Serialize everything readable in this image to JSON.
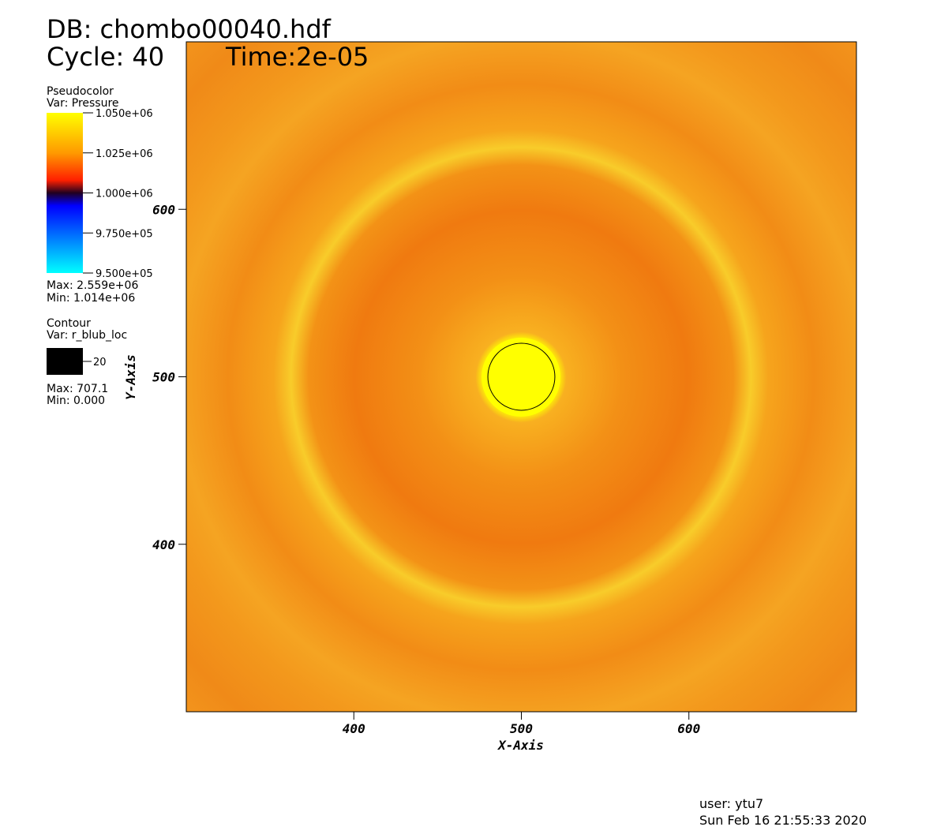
{
  "header": {
    "db": "DB: chombo00040.hdf",
    "cycle": "Cycle: 40",
    "time": "Time:2e-05"
  },
  "pseudocolor": {
    "title": "Pseudocolor",
    "var": "Var: Pressure",
    "ticks": [
      "1.050e+06",
      "1.025e+06",
      "1.000e+06",
      "9.750e+05",
      "9.500e+05"
    ],
    "max": "Max: 2.559e+06",
    "min": "Min:  1.014e+06"
  },
  "contour": {
    "title": "Contour",
    "var": "Var: r_blub_loc",
    "level": 20,
    "max": "Max: 707.1",
    "min": "Min: 0.000"
  },
  "plot": {
    "xlim": [
      300,
      700
    ],
    "ylim": [
      300,
      700
    ],
    "xticks": [
      400,
      500,
      600
    ],
    "yticks": [
      400,
      500,
      600
    ],
    "x_label": "X-Axis",
    "y_label": "Y-Axis"
  },
  "footer": {
    "user": "user: ytu7",
    "date": "Sun Feb 16 21:55:33 2020"
  }
}
